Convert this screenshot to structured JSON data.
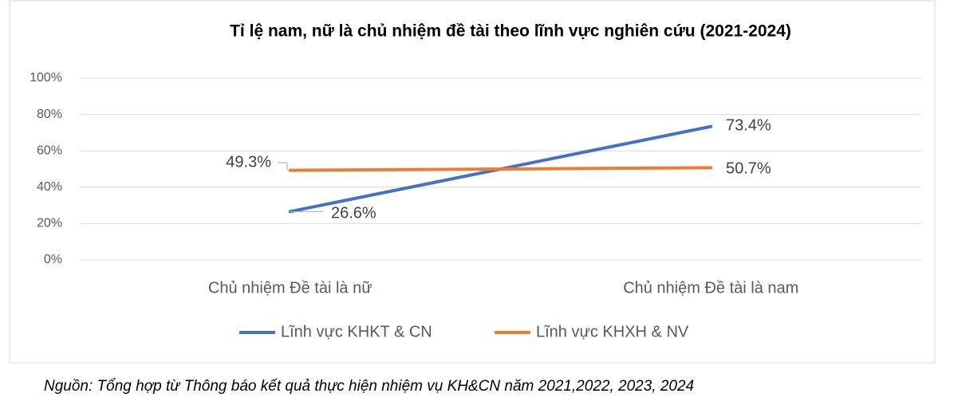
{
  "chart_data": {
    "type": "line",
    "title": "Tỉ lệ nam, nữ là chủ nhiệm đề tài theo lĩnh vực nghiên cứu (2021-2024)",
    "categories": [
      "Chủ nhiệm Đề tài là nữ",
      "Chủ nhiệm Đề tài là nam"
    ],
    "series": [
      {
        "name": "Lĩnh vực KHKT & CN",
        "color": "#4472c4",
        "values": [
          26.6,
          73.4
        ],
        "value_labels": [
          "26.6%",
          "73.4%"
        ]
      },
      {
        "name": "Lĩnh vực KHXH & NV",
        "color": "#ed7d31",
        "values": [
          49.3,
          50.7
        ],
        "value_labels": [
          "49.3%",
          "50.7%"
        ]
      }
    ],
    "ylim": [
      0,
      100
    ],
    "yticks": [
      {
        "value": 0,
        "label": "0%"
      },
      {
        "value": 20,
        "label": "20%"
      },
      {
        "value": 40,
        "label": "40%"
      },
      {
        "value": 60,
        "label": "60%"
      },
      {
        "value": 80,
        "label": "80%"
      },
      {
        "value": 100,
        "label": "100%"
      }
    ],
    "grid": true,
    "legend": "bottom",
    "source": "Nguồn: Tổng hợp từ Thông báo kết quả thực hiện nhiệm vụ KH&CN năm 2021,2022, 2023, 2024"
  }
}
